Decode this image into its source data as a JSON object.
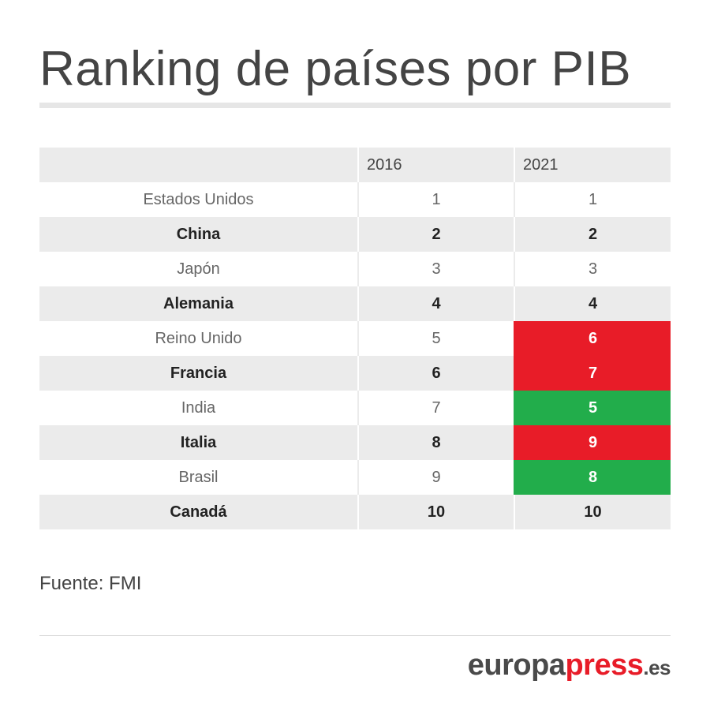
{
  "title": "Ranking de países por PIB",
  "chart_data": {
    "type": "table",
    "columns": [
      "",
      "2016",
      "2021"
    ],
    "rows": [
      {
        "country": "Estados Unidos",
        "y2016": "1",
        "y2021": "1",
        "change": "same"
      },
      {
        "country": "China",
        "y2016": "2",
        "y2021": "2",
        "change": "same"
      },
      {
        "country": "Japón",
        "y2016": "3",
        "y2021": "3",
        "change": "same"
      },
      {
        "country": "Alemania",
        "y2016": "4",
        "y2021": "4",
        "change": "same"
      },
      {
        "country": "Reino Unido",
        "y2016": "5",
        "y2021": "6",
        "change": "down"
      },
      {
        "country": "Francia",
        "y2016": "6",
        "y2021": "7",
        "change": "down"
      },
      {
        "country": "India",
        "y2016": "7",
        "y2021": "5",
        "change": "up"
      },
      {
        "country": "Italia",
        "y2016": "8",
        "y2021": "9",
        "change": "down"
      },
      {
        "country": "Brasil",
        "y2016": "9",
        "y2021": "8",
        "change": "up"
      },
      {
        "country": "Canadá",
        "y2016": "10",
        "y2021": "10",
        "change": "same"
      }
    ],
    "colors": {
      "down": "#e81c28",
      "up": "#22ad4b",
      "stripe": "#ebebeb"
    }
  },
  "source": "Fuente: FMI",
  "logo": {
    "part1": "europa",
    "part2": "press",
    "part3": ".es"
  }
}
